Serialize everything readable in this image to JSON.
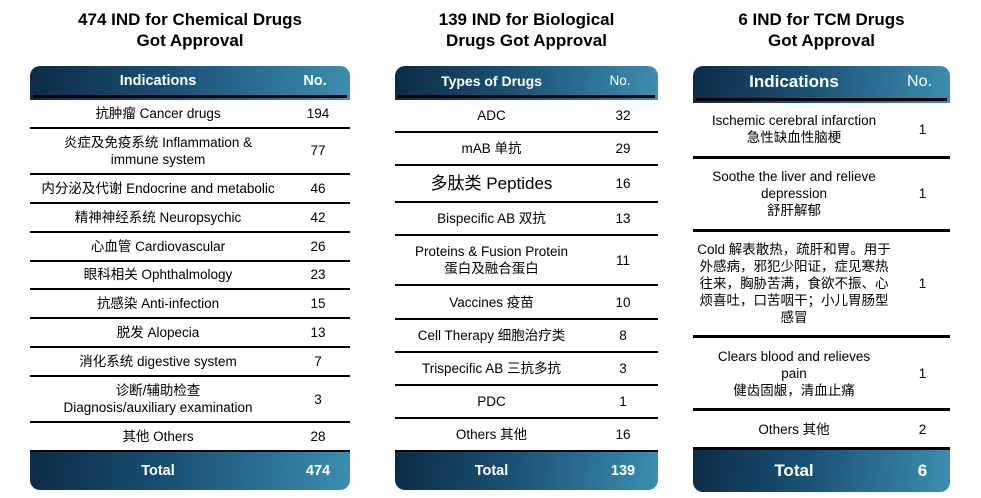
{
  "colors": {
    "gradient_start": "#0c2c47",
    "gradient_mid": "#1a5276",
    "gradient_end": "#3b8fb0",
    "row_border": "#000000",
    "header_text": "#ffffff",
    "body_text": "#000000"
  },
  "chart_data": [
    {
      "type": "table",
      "title": "474 IND for Chemical Drugs\nGot Approval",
      "col1": "Indications",
      "col2": "No.",
      "rows": [
        {
          "label": "抗肿瘤 Cancer drugs",
          "value": 194
        },
        {
          "label": "炎症及免疫系统 Inflammation &\nimmune system",
          "value": 77
        },
        {
          "label": "内分泌及代谢 Endocrine and metabolic",
          "value": 46
        },
        {
          "label": "精神神经系统 Neuropsychic",
          "value": 42
        },
        {
          "label": "心血管 Cardiovascular",
          "value": 26
        },
        {
          "label": "眼科相关 Ophthalmology",
          "value": 23
        },
        {
          "label": "抗感染 Anti-infection",
          "value": 15
        },
        {
          "label": "脱发 Alopecia",
          "value": 13
        },
        {
          "label": "消化系统 digestive system",
          "value": 7
        },
        {
          "label": "诊断/辅助检查\nDiagnosis/auxiliary examination",
          "value": 3
        },
        {
          "label": "其他 Others",
          "value": 28
        }
      ],
      "total_label": "Total",
      "total_value": 474
    },
    {
      "type": "table",
      "title": "139 IND for Biological\nDrugs Got Approval",
      "col1": "Types of Drugs",
      "col2": "No.",
      "rows": [
        {
          "label": "ADC",
          "value": 32
        },
        {
          "label": "mAB 单抗",
          "value": 29
        },
        {
          "label": "多肽类 Peptides",
          "value": 16,
          "big": true
        },
        {
          "label": "Bispecific AB 双抗",
          "value": 13
        },
        {
          "label": "Proteins & Fusion Protein\n蛋白及融合蛋白",
          "value": 11
        },
        {
          "label": "Vaccines 疫苗",
          "value": 10
        },
        {
          "label": "Cell Therapy 细胞治疗类",
          "value": 8
        },
        {
          "label": "Trispecific AB 三抗多抗",
          "value": 3
        },
        {
          "label": "PDC",
          "value": 1
        },
        {
          "label": "Others 其他",
          "value": 16
        }
      ],
      "total_label": "Total",
      "total_value": 139
    },
    {
      "type": "table",
      "title": "6 IND for TCM Drugs\nGot Approval",
      "col1": "Indications",
      "col2": "No.",
      "rows": [
        {
          "label": "Ischemic cerebral infarction\n急性缺血性脑梗",
          "value": 1
        },
        {
          "label": "Soothe the liver and relieve\ndepression\n舒肝解郁",
          "value": 1
        },
        {
          "label": "Cold 解表散热，疏肝和胃。用于外感病，邪犯少阳证，症见寒热往来，胸胁苦满，食欲不振、心烦喜吐，口苦咽干；小儿胃肠型感冒",
          "value": 1
        },
        {
          "label": "Clears blood and relieves\npain\n健齿固龈，清血止痛",
          "value": 1
        },
        {
          "label": "Others 其他",
          "value": 2
        }
      ],
      "total_label": "Total",
      "total_value": 6
    }
  ]
}
